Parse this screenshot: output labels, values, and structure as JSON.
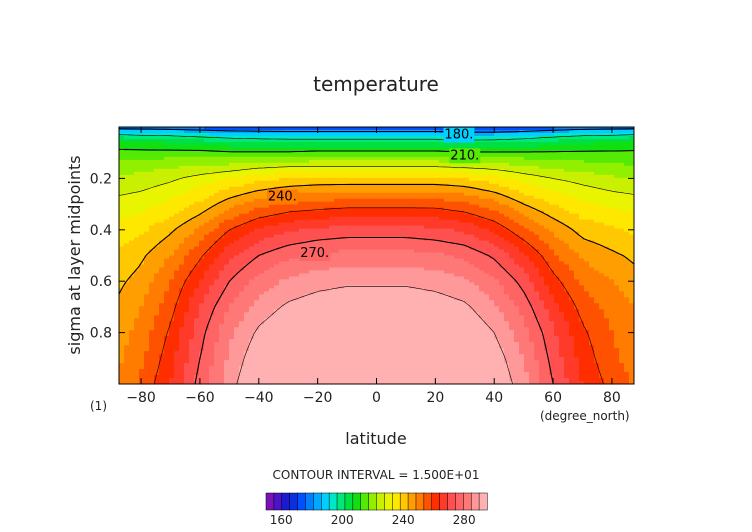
{
  "chart_data": {
    "type": "heatmap",
    "title": "temperature",
    "xlabel": "latitude",
    "ylabel": "sigma at layer midpoints",
    "x_unit": "(degree_north)",
    "panel_tag": "(1)",
    "xlim": [
      -87.5,
      87.5
    ],
    "ylim": [
      0,
      1
    ],
    "y_inverted": true,
    "x_ticks": [
      -80,
      -60,
      -40,
      -20,
      0,
      20,
      40,
      60,
      80
    ],
    "y_ticks": [
      0.2,
      0.4,
      0.6,
      0.8
    ],
    "contour_interval_text": "CONTOUR INTERVAL = 1.500E+01",
    "contour_interval": 15,
    "contour_labels": [
      {
        "text": "180.",
        "lat": 28,
        "sigma": 0.03
      },
      {
        "text": "210.",
        "lat": 30,
        "sigma": 0.11
      },
      {
        "text": "240.",
        "lat": -32,
        "sigma": 0.27
      },
      {
        "text": "270.",
        "lat": -21,
        "sigma": 0.49
      }
    ],
    "colorbar": {
      "ticks": [
        160,
        200,
        240,
        280
      ],
      "levels": [
        150,
        155,
        160,
        165,
        170,
        175,
        180,
        185,
        190,
        195,
        200,
        205,
        210,
        215,
        220,
        225,
        230,
        235,
        240,
        245,
        250,
        255,
        260,
        265,
        270,
        275,
        280,
        285,
        290,
        295
      ],
      "colors": [
        "#7a12b8",
        "#4b14c8",
        "#1a1ad2",
        "#0a2ee0",
        "#0050ff",
        "#0080ff",
        "#00a8ff",
        "#00d0ff",
        "#00e6c8",
        "#00e87a",
        "#00e040",
        "#10e010",
        "#55ea05",
        "#90f000",
        "#c8f000",
        "#e8f400",
        "#ffe800",
        "#ffc800",
        "#ff9e00",
        "#ff7c00",
        "#ff5200",
        "#ff2e00",
        "#ff3a28",
        "#ff5050",
        "#ff6464",
        "#ff7878",
        "#ff9898",
        "#ffb0b0"
      ]
    },
    "field": {
      "lat": [
        -87.5,
        -80,
        -70,
        -60,
        -50,
        -40,
        -30,
        -20,
        -10,
        0,
        10,
        20,
        30,
        40,
        50,
        60,
        70,
        80,
        87.5
      ],
      "sigma": [
        0.0,
        0.02,
        0.04,
        0.06,
        0.1,
        0.15,
        0.2,
        0.3,
        0.4,
        0.5,
        0.6,
        0.7,
        0.8,
        0.9,
        0.95,
        1.0
      ],
      "values": [
        [
          175,
          174,
          173,
          171,
          169,
          168,
          168,
          168,
          168,
          168,
          168,
          168,
          168,
          168,
          169,
          171,
          173,
          174,
          175
        ],
        [
          190,
          189,
          188,
          186,
          184,
          183,
          182,
          182,
          182,
          182,
          182,
          182,
          180,
          180,
          182,
          185,
          188,
          189,
          190
        ],
        [
          200,
          199,
          198,
          196,
          194,
          193,
          192,
          192,
          192,
          192,
          192,
          192,
          190,
          191,
          193,
          196,
          198,
          199,
          200
        ],
        [
          206,
          205,
          204,
          203,
          201,
          200,
          200,
          200,
          200,
          200,
          200,
          200,
          199,
          199,
          200,
          202,
          204,
          205,
          206
        ],
        [
          212,
          212,
          212,
          212,
          211,
          211,
          211,
          212,
          212,
          212,
          212,
          212,
          211,
          211,
          211,
          211,
          211,
          211,
          211
        ],
        [
          217,
          218,
          219,
          220,
          221,
          223,
          224,
          224,
          224,
          224,
          224,
          224,
          223,
          222,
          220,
          218,
          217,
          216,
          215
        ],
        [
          221,
          222,
          224,
          227,
          230,
          233,
          235,
          236,
          236,
          236,
          236,
          236,
          235,
          232,
          228,
          225,
          223,
          221,
          220
        ],
        [
          227,
          228,
          231,
          236,
          243,
          248,
          251,
          252,
          253,
          253,
          253,
          253,
          251,
          247,
          240,
          235,
          231,
          229,
          228
        ],
        [
          232,
          234,
          239,
          246,
          255,
          261,
          264,
          266,
          267,
          267,
          267,
          266,
          264,
          259,
          251,
          244,
          238,
          236,
          234
        ],
        [
          236,
          239,
          245,
          254,
          264,
          270,
          274,
          276,
          277,
          277,
          277,
          276,
          274,
          269,
          261,
          251,
          244,
          241,
          239
        ],
        [
          239,
          242,
          250,
          260,
          270,
          277,
          281,
          283,
          284,
          284,
          284,
          283,
          281,
          276,
          268,
          257,
          249,
          245,
          242
        ],
        [
          241,
          245,
          253,
          265,
          275,
          282,
          286,
          288,
          289,
          289,
          289,
          288,
          286,
          281,
          273,
          262,
          253,
          248,
          245
        ],
        [
          243,
          247,
          256,
          268,
          279,
          286,
          290,
          292,
          293,
          293,
          293,
          292,
          290,
          285,
          277,
          266,
          256,
          250,
          247
        ],
        [
          244,
          249,
          258,
          270,
          281,
          289,
          293,
          295,
          296,
          296,
          296,
          295,
          293,
          288,
          280,
          268,
          258,
          251,
          248
        ],
        [
          245,
          250,
          259,
          271,
          282,
          290,
          294,
          296,
          297,
          297,
          297,
          296,
          294,
          289,
          281,
          269,
          259,
          252,
          249
        ],
        [
          246,
          251,
          260,
          272,
          283,
          291,
          295,
          297,
          298,
          298,
          298,
          297,
          295,
          290,
          282,
          270,
          260,
          253,
          249
        ]
      ]
    }
  }
}
